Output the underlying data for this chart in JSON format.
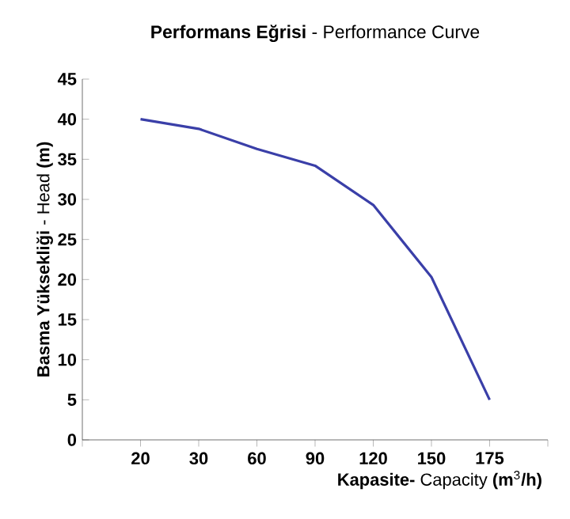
{
  "chart_data": {
    "type": "line",
    "title": "**Performans Eğrisi** - Performance Curve",
    "xlabel": "**Kapasite-** Capacity **(m**$^{3}$**/h)**",
    "ylabel": "**Basma Yüksekliği** - Head **(m)**",
    "categories": [
      "20",
      "30",
      "60",
      "90",
      "120",
      "150",
      "175"
    ],
    "values": [
      40,
      38.8,
      36.3,
      34.2,
      29.3,
      20.3,
      5
    ],
    "color": "#3a3fa8",
    "ylim": [
      0,
      45
    ],
    "yticks": [
      0,
      5,
      10,
      15,
      20,
      25,
      30,
      35,
      40,
      45
    ],
    "grid": false,
    "marker": "none",
    "line_style": "solid"
  }
}
